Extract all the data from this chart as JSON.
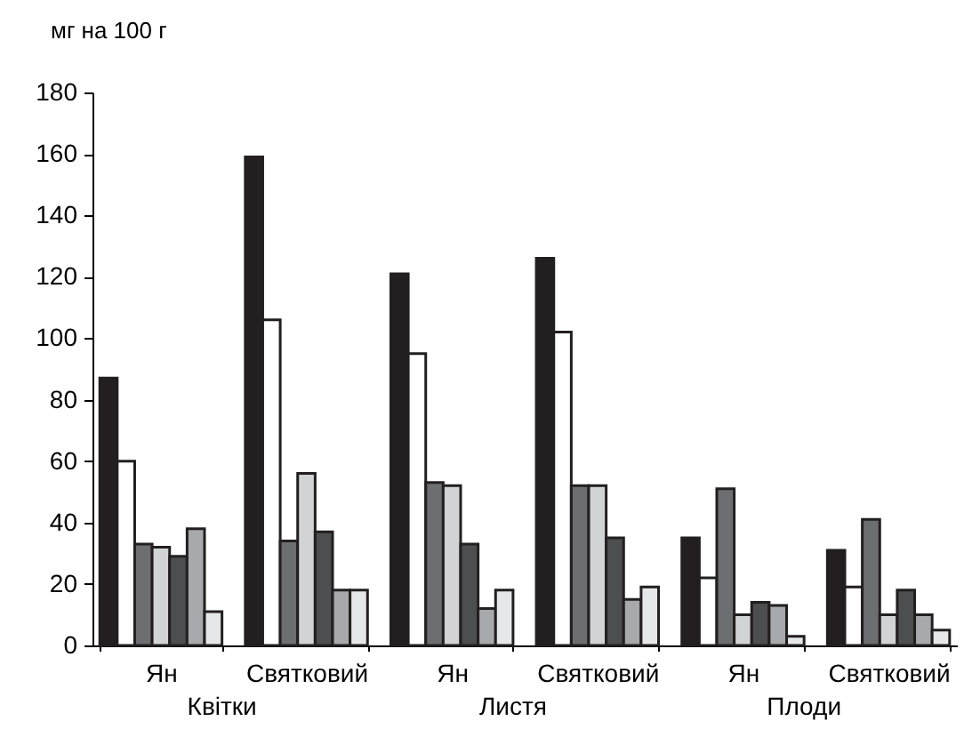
{
  "chart_data": {
    "type": "bar",
    "ylabel": "мг на 100 г",
    "categories": [
      "Ян",
      "Святковий",
      "Ян",
      "Святковий",
      "Ян",
      "Святковий"
    ],
    "annotations": [
      "Квітки",
      "Листя",
      "Плоди"
    ],
    "series": [
      {
        "color": "#231f20",
        "values": [
          87,
          159,
          121,
          126,
          35,
          31
        ]
      },
      {
        "color": "#ffffff",
        "values": [
          60,
          106,
          95,
          102,
          22,
          19
        ]
      },
      {
        "color": "#6d6e71",
        "values": [
          33,
          34,
          53,
          52,
          51,
          41
        ]
      },
      {
        "color": "#d1d3d4",
        "values": [
          32,
          56,
          52,
          52,
          10,
          10
        ]
      },
      {
        "color": "#4d4e50",
        "values": [
          29,
          37,
          33,
          35,
          14,
          18
        ]
      },
      {
        "color": "#a7a9ac",
        "values": [
          38,
          18,
          12,
          15,
          13,
          10
        ]
      },
      {
        "color": "#e6e7e8",
        "values": [
          11,
          18,
          18,
          19,
          3,
          5
        ]
      }
    ],
    "ylim": [
      0,
      180
    ],
    "yticks": [
      0,
      20,
      40,
      60,
      80,
      100,
      120,
      140,
      160,
      180
    ]
  }
}
